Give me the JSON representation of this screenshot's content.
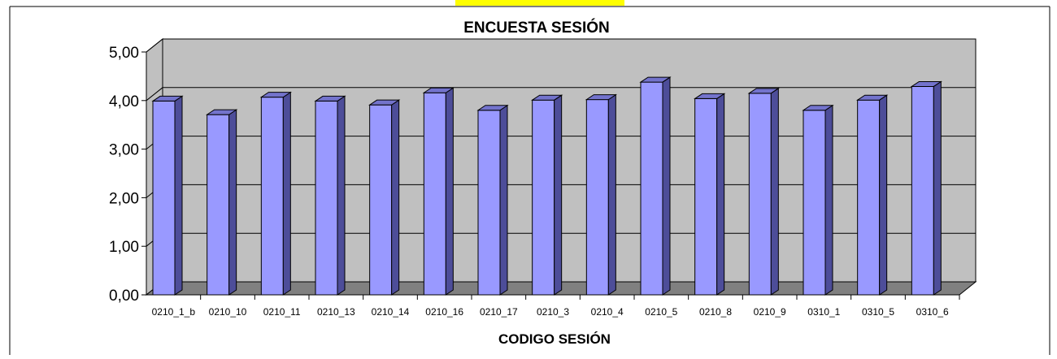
{
  "chart_data": {
    "type": "bar",
    "title": "ENCUESTA SESIÓN",
    "xlabel": "CODIGO SESIÓN",
    "ylabel": "",
    "ylim": [
      0,
      5
    ],
    "yticks": [
      "0,00",
      "1,00",
      "2,00",
      "3,00",
      "4,00",
      "5,00"
    ],
    "categories": [
      "0210_1_b",
      "0210_10",
      "0210_11",
      "0210_13",
      "0210_14",
      "0210_16",
      "0210_17",
      "0210_3",
      "0210_4",
      "0210_5",
      "0210_8",
      "0210_9",
      "0310_1",
      "0310_5",
      "0310_6"
    ],
    "values": [
      3.99,
      3.71,
      4.07,
      3.99,
      3.91,
      4.16,
      3.8,
      4.01,
      4.02,
      4.38,
      4.04,
      4.15,
      3.8,
      4.01,
      4.29
    ],
    "grid": true,
    "legend": "none",
    "three_d": true,
    "colors": {
      "bar_front": "#9999ff",
      "bar_side": "#4d4d99",
      "bar_top": "#7373cc",
      "wall": "#c0c0c0",
      "floor": "#808080",
      "highlight": "#ffff00"
    }
  }
}
